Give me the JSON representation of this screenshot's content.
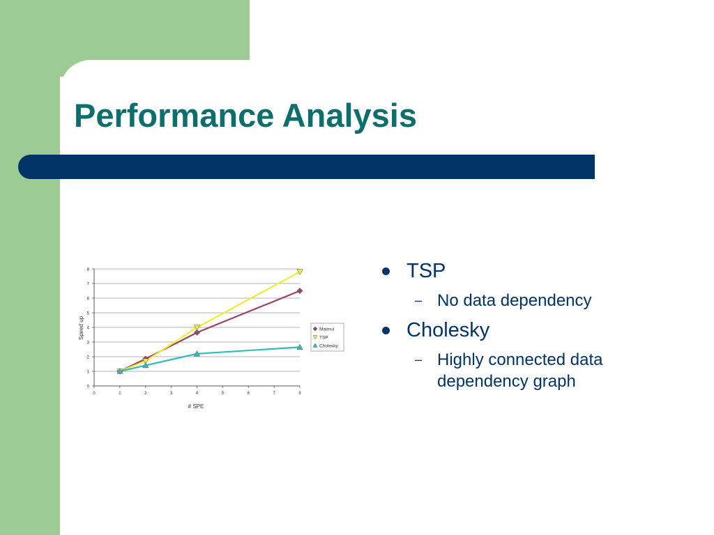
{
  "slide": {
    "title": "Performance Analysis",
    "bullets": [
      {
        "text": "TSP",
        "sub": [
          "No data dependency"
        ]
      },
      {
        "text": "Cholesky",
        "sub": [
          "Highly connected data dependency graph"
        ]
      }
    ]
  },
  "colors": {
    "title": "#0e6e6b",
    "accent_bar": "#003466",
    "background_green": "#9ccc94",
    "bullet_text": "#003466"
  },
  "chart_data": {
    "type": "line",
    "xlabel": "# SPE",
    "ylabel": "Speed up",
    "xlim": [
      0,
      8
    ],
    "ylim": [
      0,
      8
    ],
    "xticks": [
      0,
      1,
      2,
      3,
      4,
      5,
      6,
      7,
      8
    ],
    "yticks": [
      0,
      1,
      2,
      3,
      4,
      5,
      6,
      7,
      8
    ],
    "grid": "horizontal",
    "legend_position": "right",
    "series": [
      {
        "name": "Matmul",
        "color": "#994466",
        "marker": "diamond",
        "x": [
          1,
          2,
          4,
          8
        ],
        "y": [
          1,
          1.85,
          3.65,
          6.5
        ]
      },
      {
        "name": "TSP",
        "color": "#eeee33",
        "marker": "triangle-down",
        "x": [
          1,
          2,
          4,
          8
        ],
        "y": [
          1,
          1.7,
          4.0,
          7.8
        ]
      },
      {
        "name": "Cholesky",
        "color": "#33bbbb",
        "marker": "triangle-up",
        "x": [
          1,
          2,
          4,
          8
        ],
        "y": [
          1,
          1.4,
          2.2,
          2.65
        ]
      }
    ]
  }
}
